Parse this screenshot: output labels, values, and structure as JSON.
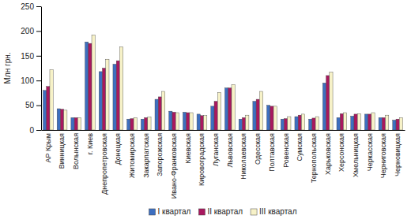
{
  "chart_data": {
    "type": "bar",
    "y_label": "Млн грн.",
    "categories": [
      "АР Крым",
      "Винницкая",
      "Волынская",
      "г. Киев",
      "Днепропетровская",
      "Донецкая",
      "Житомирская",
      "Закарпатская",
      "Запорожская",
      "Ивано-Франковская",
      "Киевская",
      "Кировоградская",
      "Луганская",
      "Львовская",
      "Николаевская",
      "Одесская",
      "Полтавская",
      "Ровенская",
      "Сумская",
      "Тернопольская",
      "Харьковская",
      "Херсонская",
      "Хмельницкая",
      "Черкасская",
      "Черниговская",
      "Черновицкая"
    ],
    "series": [
      {
        "name": "I квартал",
        "color": "#3d6fc0",
        "values": [
          80,
          43,
          25,
          178,
          118,
          133,
          22,
          22,
          62,
          38,
          36,
          32,
          48,
          85,
          22,
          58,
          50,
          22,
          27,
          22,
          95,
          25,
          28,
          32,
          25,
          20
        ]
      },
      {
        "name": "II квартал",
        "color": "#a8185e",
        "values": [
          88,
          42,
          25,
          175,
          125,
          140,
          23,
          25,
          67,
          36,
          35,
          29,
          58,
          85,
          25,
          62,
          48,
          23,
          30,
          24,
          110,
          33,
          32,
          32,
          25,
          22
        ]
      },
      {
        "name": "III квартал",
        "color": "#f7f2c8",
        "values": [
          122,
          40,
          25,
          192,
          143,
          168,
          25,
          26,
          78,
          35,
          35,
          29,
          76,
          92,
          30,
          78,
          48,
          27,
          32,
          27,
          117,
          35,
          33,
          35,
          30,
          25
        ]
      }
    ],
    "ylim": [
      0,
      250
    ],
    "yticks": [
      0,
      50,
      100,
      150,
      200,
      250
    ],
    "grid": false,
    "legend": "bottom"
  }
}
